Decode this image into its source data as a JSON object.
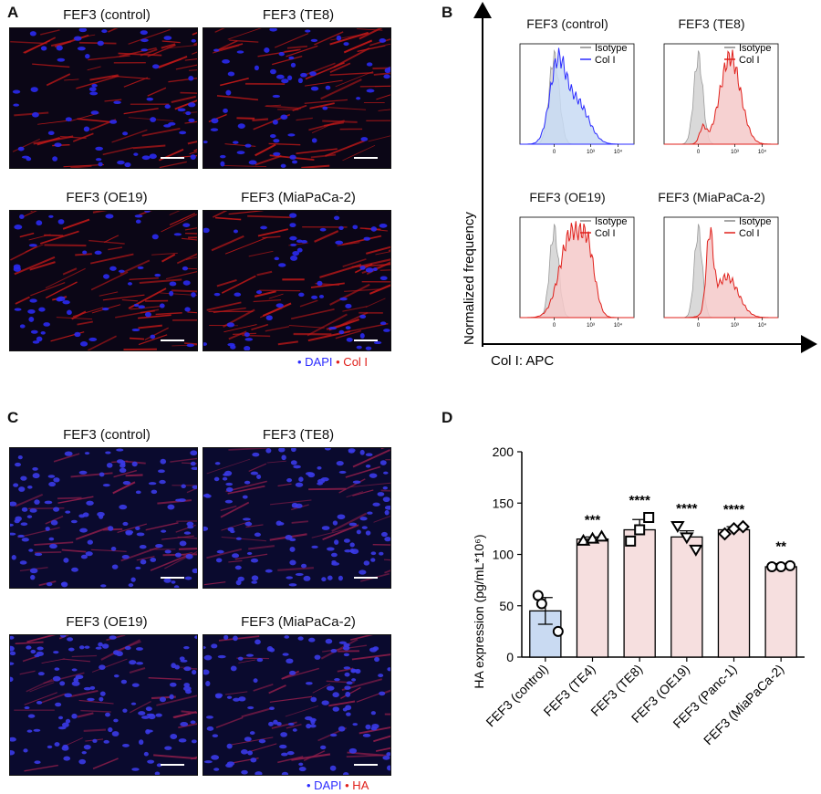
{
  "panels": {
    "a": {
      "letter": "A",
      "images": [
        "FEF3 (control)",
        "FEF3 (TE8)",
        "FEF3 (OE19)",
        "FEF3 (MiaPaCa-2)"
      ],
      "legend": {
        "dapi": "• DAPI",
        "stain": "• Col I"
      }
    },
    "b": {
      "letter": "B",
      "plots": [
        "FEF3 (control)",
        "FEF3 (TE8)",
        "FEF3 (OE19)",
        "FEF3 (MiaPaCa-2)"
      ],
      "legend_isotype": "Isotype",
      "legend_stain": "Col I",
      "ylabel": "Normalized frequency",
      "xlabel": "Col I: APC",
      "tick_labels": [
        "0",
        "10³",
        "10⁴"
      ]
    },
    "c": {
      "letter": "C",
      "images": [
        "FEF3 (control)",
        "FEF3 (TE8)",
        "FEF3 (OE19)",
        "FEF3 (MiaPaCa-2)"
      ],
      "legend": {
        "dapi": "• DAPI",
        "stain": "• HA"
      }
    },
    "d": {
      "letter": "D"
    }
  },
  "colors": {
    "blue": "#2b2bff",
    "red": "#e0201b",
    "iso_fill": "#d9d9d9",
    "blue_fill": "#c8daf3",
    "red_fill": "#f5c9c9",
    "bar_blue": "#c9daf2",
    "bar_pink": "#f6dfdf"
  },
  "chart_data": {
    "type": "bar",
    "ylabel": "HA expression (pg/mL*10⁶)",
    "xlabel": "",
    "ylim": [
      0,
      200
    ],
    "yticks": [
      0,
      50,
      100,
      150,
      200
    ],
    "categories": [
      "FEF3 (control)",
      "FEF3 (TE4)",
      "FEF3 (TE8)",
      "FEF3 (OE19)",
      "FEF3 (Panc-1)",
      "FEF3 (MiaPaCa-2)"
    ],
    "values": [
      45,
      115,
      124,
      117,
      124,
      88
    ],
    "errors": [
      13,
      2,
      10,
      6,
      3,
      3
    ],
    "points": [
      [
        60,
        52,
        25
      ],
      [
        113,
        115,
        117
      ],
      [
        113,
        124,
        136
      ],
      [
        128,
        117,
        105
      ],
      [
        120,
        125,
        127
      ],
      [
        88,
        88,
        89
      ]
    ],
    "markers": [
      "circle",
      "triangle",
      "square",
      "triangle-down",
      "diamond",
      "circle"
    ],
    "significance": [
      "",
      "***",
      "****",
      "****",
      "****",
      "**"
    ]
  }
}
